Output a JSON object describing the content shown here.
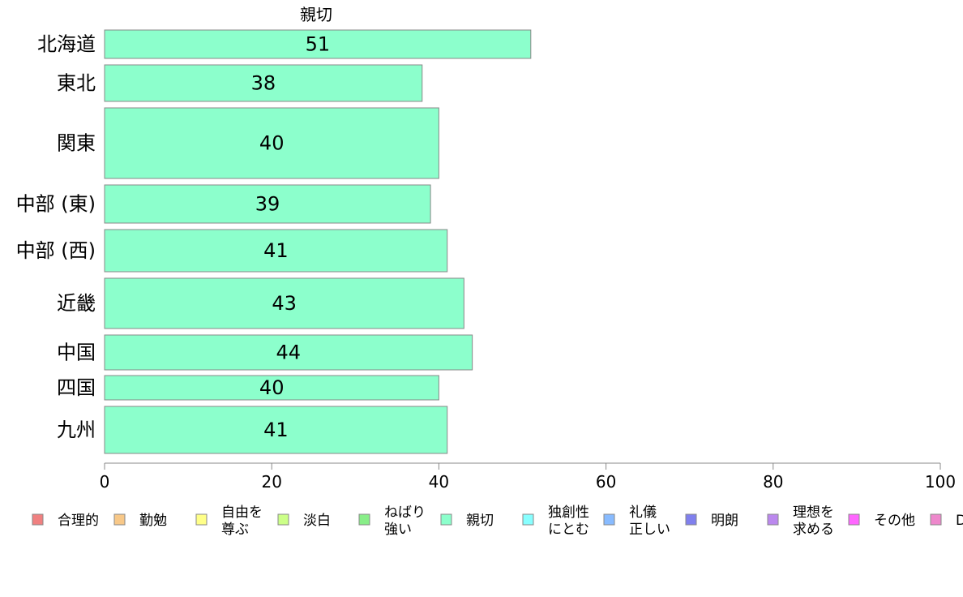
{
  "chart_data": {
    "type": "bar",
    "orientation": "horizontal",
    "title": "親切",
    "categories": [
      "北海道",
      "東北",
      "関東",
      "中部 (東)",
      "中部 (西)",
      "近畿",
      "中国",
      "四国",
      "九州"
    ],
    "series": [
      {
        "name": "親切",
        "values": [
          51,
          38,
          40,
          39,
          41,
          43,
          44,
          40,
          41
        ],
        "color": "#8cffcc"
      }
    ],
    "data_labels": [
      "51",
      "38",
      "40",
      "39",
      "41",
      "43",
      "44",
      "40",
      "41"
    ],
    "xlim": [
      0,
      100
    ],
    "xticks": [
      "0",
      "20",
      "40",
      "60",
      "80",
      "100"
    ],
    "grid": false,
    "legend": {
      "placement": "bottom",
      "items": [
        {
          "lines": [
            "合理的"
          ],
          "color": "#f08080"
        },
        {
          "lines": [
            "勤勉"
          ],
          "color": "#f8c888"
        },
        {
          "lines": [
            "自由を",
            "尊ぶ"
          ],
          "color": "#ffff88"
        },
        {
          "lines": [
            "淡白"
          ],
          "color": "#ccff88"
        },
        {
          "lines": [
            "ねばり",
            "強い"
          ],
          "color": "#88ee88"
        },
        {
          "lines": [
            "親切"
          ],
          "color": "#8cffcc"
        },
        {
          "lines": [
            "独創性",
            "にとむ"
          ],
          "color": "#88ffff"
        },
        {
          "lines": [
            "礼儀",
            "正しい"
          ],
          "color": "#88bbff"
        },
        {
          "lines": [
            "明朗"
          ],
          "color": "#8080ee"
        },
        {
          "lines": [
            "理想を",
            "求める"
          ],
          "color": "#bb88ee"
        },
        {
          "lines": [
            "その他"
          ],
          "color": "#ff66ff"
        },
        {
          "lines": [
            "D"
          ],
          "color": "#ee88cc"
        }
      ]
    }
  }
}
